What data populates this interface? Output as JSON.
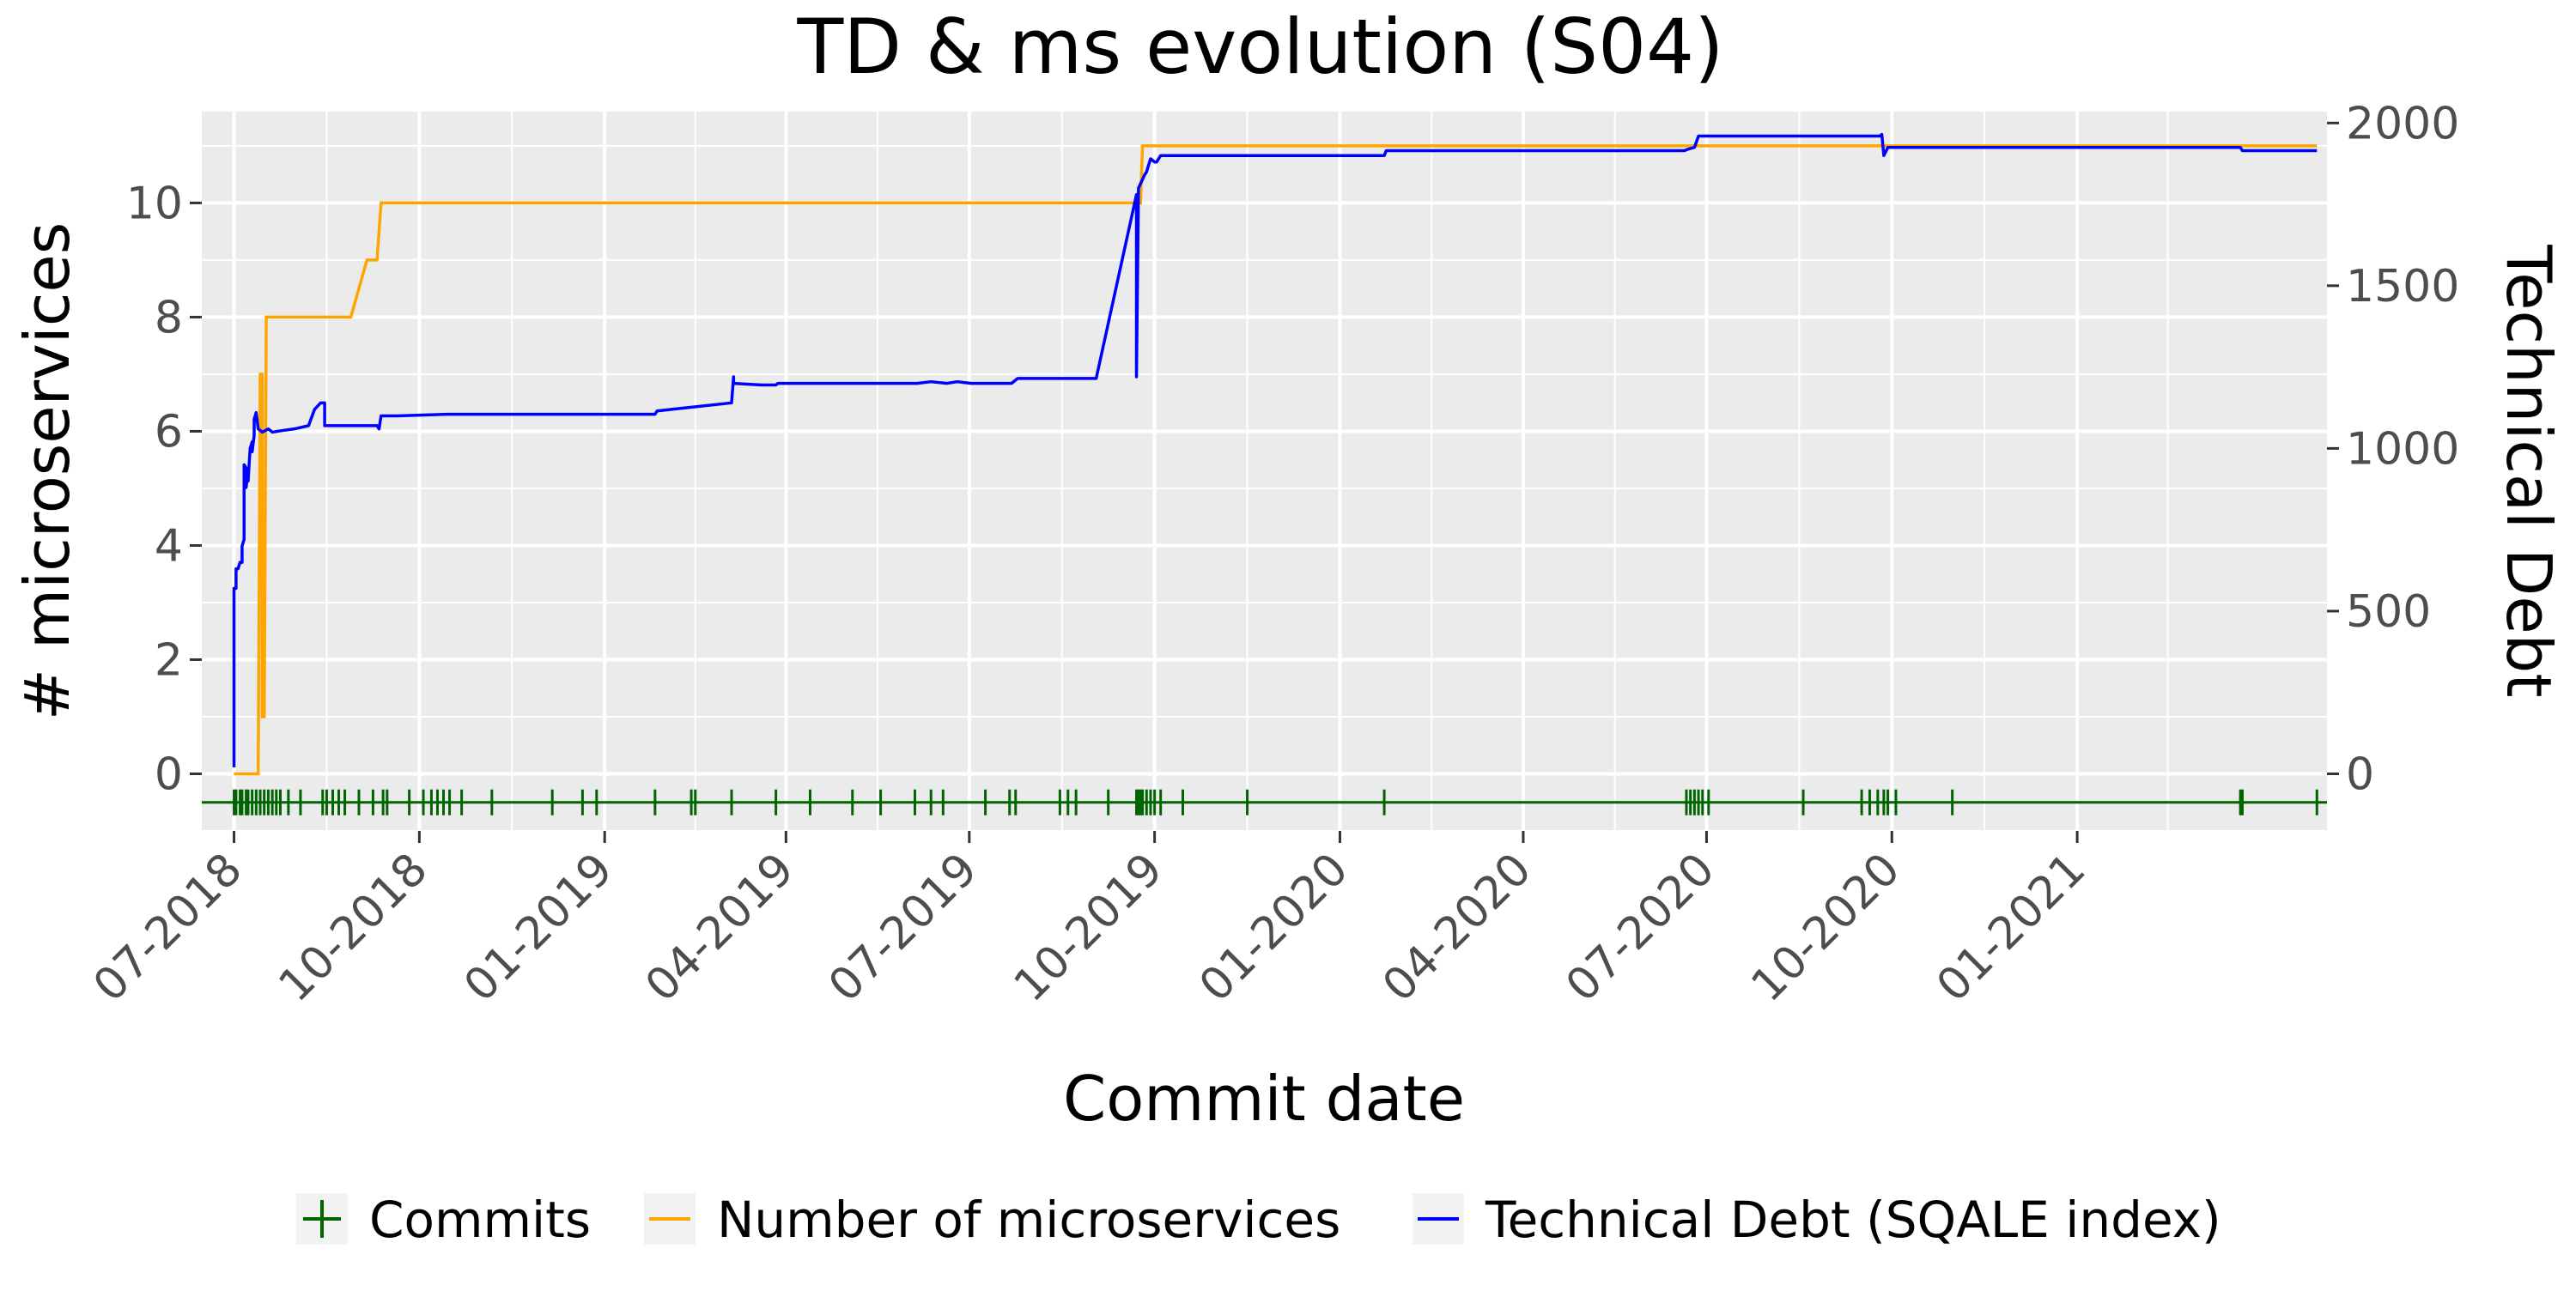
{
  "chart_data": {
    "type": "line",
    "title": "TD & ms evolution (S04)",
    "xlabel": "Commit date",
    "ylabel_left": "# microservices",
    "ylabel_right": "Technical Debt",
    "x_tick_labels": [
      "07-2018",
      "10-2018",
      "01-2019",
      "04-2019",
      "07-2019",
      "10-2019",
      "01-2020",
      "04-2020",
      "07-2020",
      "10-2020",
      "01-2021"
    ],
    "x_ticks": [
      "2018-07-01",
      "2018-10-01",
      "2019-01-01",
      "2019-04-01",
      "2019-07-01",
      "2019-10-01",
      "2020-01-01",
      "2020-04-01",
      "2020-07-01",
      "2020-10-01",
      "2021-01-01"
    ],
    "x_range": [
      "2018-06-15",
      "2021-05-05"
    ],
    "y_left_ticks": [
      0,
      2,
      4,
      6,
      8,
      10
    ],
    "y_left_range": [
      -1.0,
      11.6
    ],
    "y_right_ticks": [
      0,
      500,
      1000,
      1500,
      2000
    ],
    "y_right_tick_labels": [
      "0",
      "500",
      "1000",
      "1500",
      "2000"
    ],
    "grid": true,
    "legend_position": "bottom",
    "series": [
      {
        "name": "Commits",
        "color": "#006400",
        "axis": "left",
        "kind": "commit-markers",
        "y": -0.5,
        "dates": [
          "2018-07-01",
          "2018-07-02",
          "2018-07-04",
          "2018-07-05",
          "2018-07-07",
          "2018-07-08",
          "2018-07-10",
          "2018-07-12",
          "2018-07-14",
          "2018-07-16",
          "2018-07-18",
          "2018-07-20",
          "2018-07-22",
          "2018-07-24",
          "2018-07-28",
          "2018-08-03",
          "2018-08-14",
          "2018-08-16",
          "2018-08-19",
          "2018-08-22",
          "2018-08-25",
          "2018-09-01",
          "2018-09-08",
          "2018-09-13",
          "2018-09-15",
          "2018-09-26",
          "2018-10-03",
          "2018-10-07",
          "2018-10-10",
          "2018-10-13",
          "2018-10-16",
          "2018-10-22",
          "2018-11-06",
          "2018-12-06",
          "2018-12-21",
          "2018-12-28",
          "2019-01-26",
          "2019-02-13",
          "2019-02-15",
          "2019-03-05",
          "2019-03-27",
          "2019-04-13",
          "2019-05-04",
          "2019-05-18",
          "2019-06-04",
          "2019-06-12",
          "2019-06-18",
          "2019-07-09",
          "2019-07-21",
          "2019-07-24",
          "2019-08-15",
          "2019-08-19",
          "2019-08-23",
          "2019-09-08",
          "2019-09-22",
          "2019-09-23",
          "2019-09-24",
          "2019-09-25",
          "2019-09-27",
          "2019-09-29",
          "2019-10-01",
          "2019-10-04",
          "2019-10-15",
          "2019-11-16",
          "2020-01-23",
          "2020-06-21",
          "2020-06-23",
          "2020-06-25",
          "2020-06-27",
          "2020-06-29",
          "2020-07-02",
          "2020-08-18",
          "2020-09-16",
          "2020-09-20",
          "2020-09-24",
          "2020-09-27",
          "2020-09-29",
          "2020-10-03",
          "2020-10-31",
          "2021-03-23",
          "2021-03-24",
          "2021-04-30"
        ]
      },
      {
        "name": "Number of microservices",
        "color": "#FFA500",
        "axis": "left",
        "kind": "step",
        "points": [
          [
            "2018-07-01",
            0
          ],
          [
            "2018-07-13",
            0
          ],
          [
            "2018-07-14",
            7
          ],
          [
            "2018-07-15",
            7
          ],
          [
            "2018-07-15",
            1
          ],
          [
            "2018-07-16",
            1
          ],
          [
            "2018-07-17",
            8
          ],
          [
            "2018-08-28",
            8
          ],
          [
            "2018-09-05",
            9
          ],
          [
            "2018-09-10",
            9
          ],
          [
            "2018-09-12",
            10
          ],
          [
            "2019-09-24",
            10
          ],
          [
            "2019-09-25",
            11
          ],
          [
            "2021-04-30",
            11
          ]
        ]
      },
      {
        "name": "Technical Debt (SQALE index)",
        "color": "#0000FF",
        "axis": "right",
        "kind": "line",
        "points": [
          [
            "2018-07-01",
            20
          ],
          [
            "2018-07-01",
            570
          ],
          [
            "2018-07-02",
            570
          ],
          [
            "2018-07-02",
            630
          ],
          [
            "2018-07-03",
            630
          ],
          [
            "2018-07-04",
            650
          ],
          [
            "2018-07-05",
            650
          ],
          [
            "2018-07-05",
            700
          ],
          [
            "2018-07-06",
            720
          ],
          [
            "2018-07-06",
            950
          ],
          [
            "2018-07-07",
            940
          ],
          [
            "2018-07-07",
            880
          ],
          [
            "2018-07-08",
            930
          ],
          [
            "2018-07-08",
            900
          ],
          [
            "2018-07-09",
            1000
          ],
          [
            "2018-07-10",
            1020
          ],
          [
            "2018-07-10",
            990
          ],
          [
            "2018-07-11",
            1040
          ],
          [
            "2018-07-11",
            1090
          ],
          [
            "2018-07-12",
            1110
          ],
          [
            "2018-07-13",
            1060
          ],
          [
            "2018-07-15",
            1050
          ],
          [
            "2018-07-18",
            1060
          ],
          [
            "2018-07-20",
            1050
          ],
          [
            "2018-07-25",
            1055
          ],
          [
            "2018-07-31",
            1060
          ],
          [
            "2018-08-07",
            1070
          ],
          [
            "2018-08-10",
            1120
          ],
          [
            "2018-08-13",
            1140
          ],
          [
            "2018-08-15",
            1140
          ],
          [
            "2018-08-15",
            1070
          ],
          [
            "2018-08-20",
            1070
          ],
          [
            "2018-09-10",
            1070
          ],
          [
            "2018-09-11",
            1060
          ],
          [
            "2018-09-12",
            1100
          ],
          [
            "2018-09-20",
            1100
          ],
          [
            "2018-10-15",
            1105
          ],
          [
            "2019-01-05",
            1105
          ],
          [
            "2019-01-26",
            1105
          ],
          [
            "2019-01-27",
            1115
          ],
          [
            "2019-03-05",
            1140
          ],
          [
            "2019-03-06",
            1220
          ],
          [
            "2019-03-06",
            1200
          ],
          [
            "2019-03-20",
            1195
          ],
          [
            "2019-03-27",
            1195
          ],
          [
            "2019-03-28",
            1200
          ],
          [
            "2019-05-15",
            1200
          ],
          [
            "2019-06-05",
            1200
          ],
          [
            "2019-06-12",
            1205
          ],
          [
            "2019-06-20",
            1200
          ],
          [
            "2019-06-25",
            1205
          ],
          [
            "2019-07-02",
            1200
          ],
          [
            "2019-07-22",
            1200
          ],
          [
            "2019-07-25",
            1215
          ],
          [
            "2019-09-02",
            1215
          ],
          [
            "2019-09-22",
            1780
          ],
          [
            "2019-09-22",
            1220
          ],
          [
            "2019-09-23",
            1800
          ],
          [
            "2019-09-26",
            1840
          ],
          [
            "2019-09-27",
            1850
          ],
          [
            "2019-09-29",
            1890
          ],
          [
            "2019-10-01",
            1880
          ],
          [
            "2019-10-02",
            1880
          ],
          [
            "2019-10-04",
            1900
          ],
          [
            "2019-10-15",
            1900
          ],
          [
            "2019-12-01",
            1900
          ],
          [
            "2020-01-23",
            1900
          ],
          [
            "2020-01-24",
            1915
          ],
          [
            "2020-03-01",
            1915
          ],
          [
            "2020-06-20",
            1915
          ],
          [
            "2020-06-22",
            1920
          ],
          [
            "2020-06-25",
            1925
          ],
          [
            "2020-06-27",
            1960
          ],
          [
            "2020-08-01",
            1960
          ],
          [
            "2020-09-25",
            1960
          ],
          [
            "2020-09-26",
            1965
          ],
          [
            "2020-09-27",
            1900
          ],
          [
            "2020-09-29",
            1925
          ],
          [
            "2020-12-01",
            1925
          ],
          [
            "2021-03-23",
            1925
          ],
          [
            "2021-03-24",
            1915
          ],
          [
            "2021-04-30",
            1915
          ]
        ]
      }
    ]
  }
}
